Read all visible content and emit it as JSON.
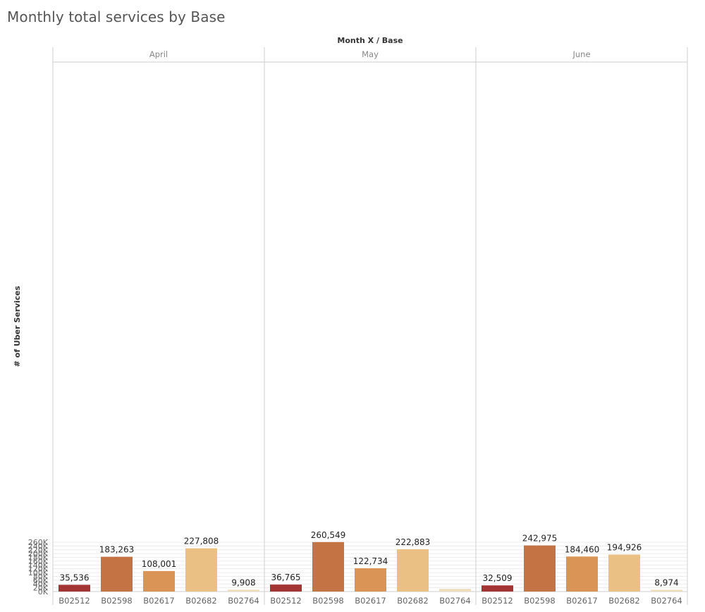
{
  "page": {
    "title": "Monthly total services by Base"
  },
  "chart_data": {
    "type": "bar",
    "title": "Monthly total services by Base",
    "column_header": "Month X  /  Base",
    "ylabel": "# of Uber Services",
    "ylim": [
      0,
      275000
    ],
    "yticks": [
      0,
      20000,
      40000,
      60000,
      80000,
      100000,
      120000,
      140000,
      160000,
      180000,
      200000,
      220000,
      240000,
      260000
    ],
    "ytick_labels": [
      "0K",
      "20K",
      "40K",
      "60K",
      "80K",
      "100K",
      "120K",
      "140K",
      "160K",
      "180K",
      "200K",
      "220K",
      "240K",
      "260K"
    ],
    "grid": true,
    "categories": [
      "B02512",
      "B02598",
      "B02617",
      "B02682",
      "B02764"
    ],
    "colors": [
      "#a33434",
      "#c47345",
      "#d99456",
      "#eac085",
      "#efdcbb"
    ],
    "panels": [
      {
        "name": "April",
        "values": [
          35536,
          183263,
          108001,
          227808,
          9908
        ],
        "labels": [
          "35,536",
          "183,263",
          "108,001",
          "227,808",
          "9,908"
        ]
      },
      {
        "name": "May",
        "values": [
          36765,
          260549,
          122734,
          222883,
          14000
        ],
        "labels": [
          "36,765",
          "260,549",
          "122,734",
          "222,883",
          ""
        ]
      },
      {
        "name": "June",
        "values": [
          32509,
          242975,
          184460,
          194926,
          8974
        ],
        "labels": [
          "32,509",
          "242,975",
          "184,460",
          "194,926",
          "8,974"
        ]
      }
    ]
  }
}
